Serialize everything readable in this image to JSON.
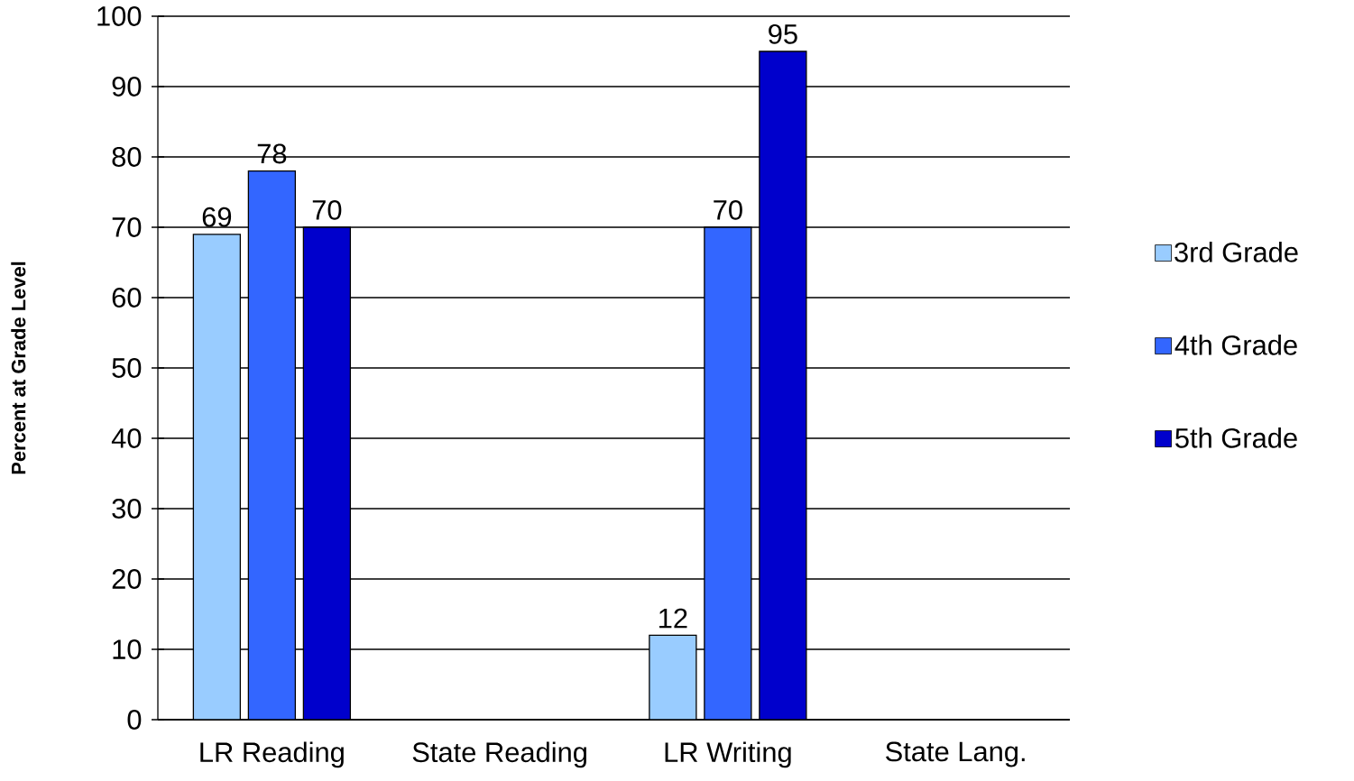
{
  "chart_data": {
    "type": "bar",
    "ylabel": "Percent at Grade Level",
    "categories": [
      "LR Reading",
      "State Reading",
      "LR Writing",
      "State Lang."
    ],
    "series": [
      {
        "name": "3rd Grade",
        "color": "#99ccff",
        "values": [
          69,
          null,
          12,
          null
        ]
      },
      {
        "name": "4th Grade",
        "color": "#3366ff",
        "values": [
          78,
          null,
          70,
          null
        ]
      },
      {
        "name": "5th Grade",
        "color": "#0000cc",
        "values": [
          70,
          null,
          95,
          null
        ]
      }
    ],
    "ylim": [
      0,
      100
    ],
    "yticks": [
      0,
      10,
      20,
      30,
      40,
      50,
      60,
      70,
      80,
      90,
      100
    ],
    "grid": "y",
    "legend": "right",
    "data_labels": true
  }
}
